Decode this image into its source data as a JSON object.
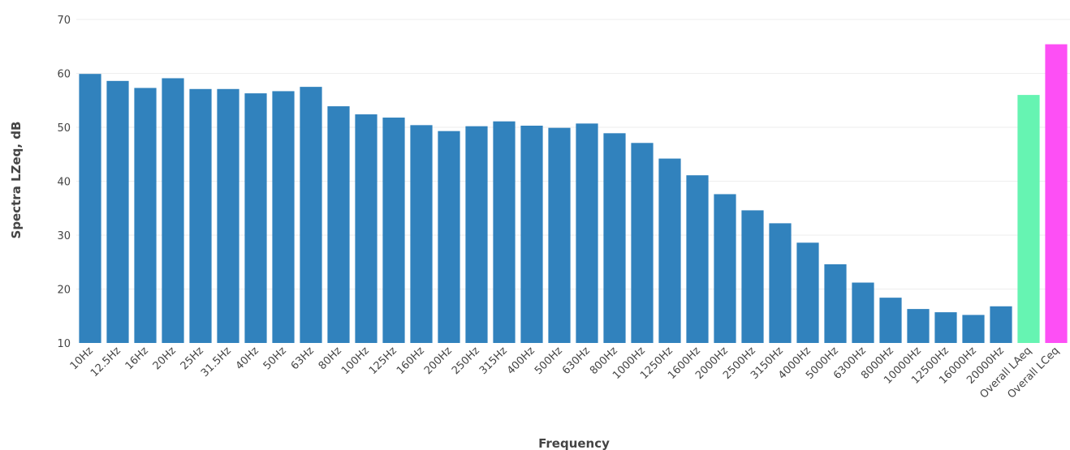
{
  "chart_data": {
    "type": "bar",
    "xlabel": "Frequency",
    "ylabel": "Spectra LZeq, dB",
    "ylim": [
      10,
      70
    ],
    "yticks": [
      10,
      20,
      30,
      40,
      50,
      60,
      70
    ],
    "grid": true,
    "categories": [
      "10Hz",
      "12.5Hz",
      "16Hz",
      "20Hz",
      "25Hz",
      "31.5Hz",
      "40Hz",
      "50Hz",
      "63Hz",
      "80Hz",
      "100Hz",
      "125Hz",
      "160Hz",
      "200Hz",
      "250Hz",
      "315Hz",
      "400Hz",
      "500Hz",
      "630Hz",
      "800Hz",
      "1000Hz",
      "1250Hz",
      "1600Hz",
      "2000Hz",
      "2500Hz",
      "3150Hz",
      "4000Hz",
      "5000Hz",
      "6300Hz",
      "8000Hz",
      "10000Hz",
      "12500Hz",
      "16000Hz",
      "20000Hz",
      "Overall LAeq",
      "Overall LCeq"
    ],
    "values": [
      59.9,
      58.6,
      57.3,
      59.1,
      57.1,
      57.1,
      56.3,
      56.7,
      57.5,
      53.9,
      52.4,
      51.8,
      50.4,
      49.3,
      50.2,
      51.1,
      50.3,
      49.9,
      50.7,
      48.9,
      47.1,
      44.2,
      41.1,
      37.6,
      34.6,
      32.2,
      28.6,
      24.6,
      21.2,
      18.4,
      16.3,
      15.7,
      15.2,
      16.8,
      56.0,
      65.4
    ],
    "colors": {
      "spectrum": "#3182bd",
      "overall_laeq": "#66f4b2",
      "overall_lceq": "#fd4ff5",
      "gridline": "#eeeeee",
      "text": "#444444"
    }
  }
}
